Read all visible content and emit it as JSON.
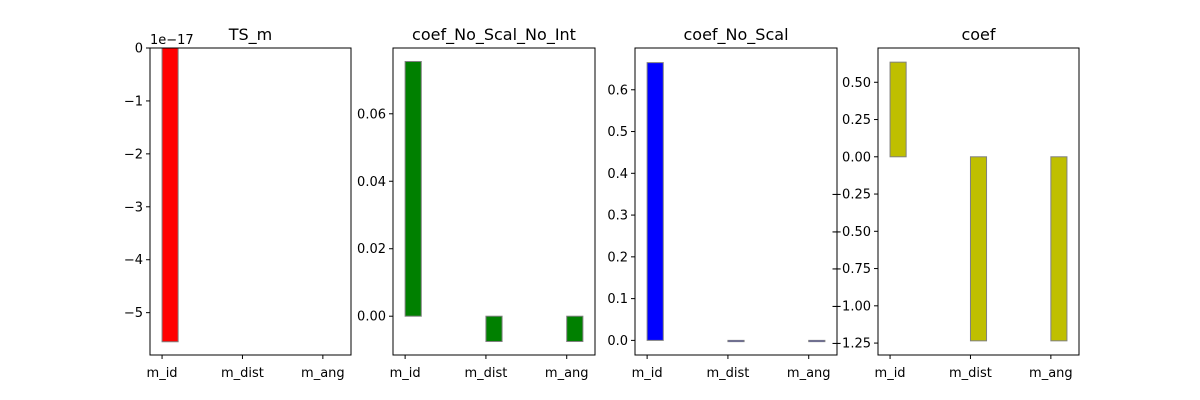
{
  "chart_data": [
    {
      "type": "bar",
      "title": "TS_m",
      "categories": [
        "m_id",
        "m_dist",
        "m_ang"
      ],
      "values": [
        -5.55e-17,
        0,
        0
      ],
      "ylim": [
        -5.8e-17,
        0
      ],
      "yticks": [
        0,
        -1,
        -2,
        -3,
        -4,
        -5
      ],
      "ytick_labels": [
        "0",
        "−1",
        "−2",
        "−3",
        "−4",
        "−5"
      ],
      "ytick_scale": 1e-17,
      "offset_text": "1e−17",
      "bar_color": "#ff0000",
      "edge_color": "#808080",
      "grid": false
    },
    {
      "type": "bar",
      "title": "coef_No_Scal_No_Int",
      "categories": [
        "m_id",
        "m_dist",
        "m_ang"
      ],
      "values": [
        0.0755,
        -0.0075,
        -0.0075
      ],
      "ylim": [
        -0.0115,
        0.0795
      ],
      "yticks": [
        0.0,
        0.02,
        0.04,
        0.06
      ],
      "ytick_labels": [
        "0.00",
        "0.02",
        "0.04",
        "0.06"
      ],
      "ytick_scale": 1,
      "offset_text": "",
      "bar_color": "#008000",
      "edge_color": "#808080",
      "grid": false
    },
    {
      "type": "bar",
      "title": "coef_No_Scal",
      "categories": [
        "m_id",
        "m_dist",
        "m_ang"
      ],
      "values": [
        0.665,
        -0.003,
        -0.003
      ],
      "ylim": [
        -0.035,
        0.7
      ],
      "yticks": [
        0.0,
        0.1,
        0.2,
        0.3,
        0.4,
        0.5,
        0.6
      ],
      "ytick_labels": [
        "0.0",
        "0.1",
        "0.2",
        "0.3",
        "0.4",
        "0.5",
        "0.6"
      ],
      "ytick_scale": 1,
      "offset_text": "",
      "bar_color": "#0000ff",
      "edge_color": "#808080",
      "grid": false
    },
    {
      "type": "bar",
      "title": "coef",
      "categories": [
        "m_id",
        "m_dist",
        "m_ang"
      ],
      "values": [
        0.635,
        -1.235,
        -1.235
      ],
      "ylim": [
        -1.33,
        0.73
      ],
      "yticks": [
        0.5,
        0.25,
        0.0,
        -0.25,
        -0.5,
        -0.75,
        -1.0,
        -1.25
      ],
      "ytick_labels": [
        "0.50",
        "0.25",
        "0.00",
        "−0.25",
        "−0.50",
        "−0.75",
        "−1.00",
        "−1.25"
      ],
      "ytick_scale": 1,
      "offset_text": "",
      "bar_color": "#bfbf00",
      "edge_color": "#808080",
      "grid": false
    }
  ]
}
